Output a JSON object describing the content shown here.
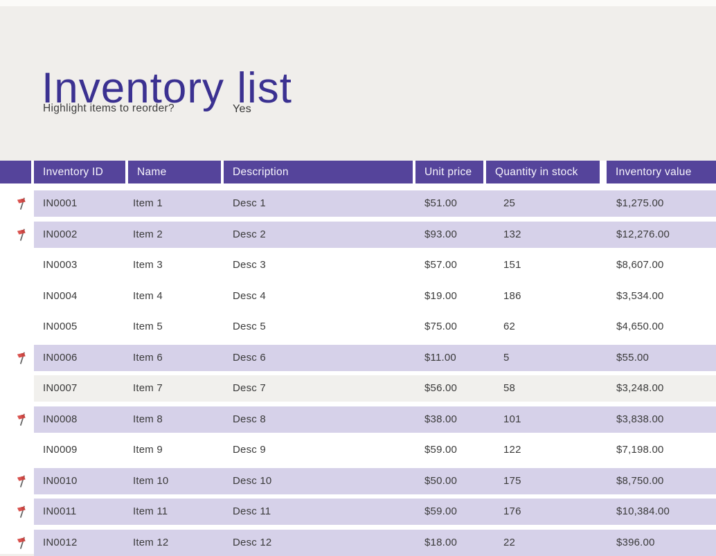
{
  "page": {
    "title": "Inventory list",
    "question_label": "Highlight items to reorder?",
    "question_value": "Yes"
  },
  "colors": {
    "header_bg": "#55449b",
    "highlight_row_bg": "#d6d1e9",
    "alt_row_bg": "#f1f0ed",
    "white_row_bg": "#ffffff",
    "title_text": "#3b3191",
    "page_bg": "#f0eeeb",
    "header_text": "#f7f5fc",
    "cell_text": "#3a3a3a",
    "flag_red": "#d9534f"
  },
  "table": {
    "columns": [
      {
        "key": "inventory_id",
        "label": "Inventory ID"
      },
      {
        "key": "name",
        "label": "Name"
      },
      {
        "key": "description",
        "label": "Description"
      },
      {
        "key": "unit_price",
        "label": "Unit price"
      },
      {
        "key": "quantity_in_stock",
        "label": "Quantity in stock"
      },
      {
        "key": "inventory_value",
        "label": "Inventory value"
      }
    ],
    "rows": [
      {
        "flag": true,
        "shade": "highlight",
        "inventory_id": "IN0001",
        "name": "Item 1",
        "description": "Desc 1",
        "unit_price": "$51.00",
        "quantity_in_stock": "25",
        "inventory_value": "$1,275.00"
      },
      {
        "flag": true,
        "shade": "highlight",
        "inventory_id": "IN0002",
        "name": "Item 2",
        "description": "Desc 2",
        "unit_price": "$93.00",
        "quantity_in_stock": "132",
        "inventory_value": "$12,276.00"
      },
      {
        "flag": false,
        "shade": "white",
        "inventory_id": "IN0003",
        "name": "Item 3",
        "description": "Desc 3",
        "unit_price": "$57.00",
        "quantity_in_stock": "151",
        "inventory_value": "$8,607.00"
      },
      {
        "flag": false,
        "shade": "white",
        "inventory_id": "IN0004",
        "name": "Item 4",
        "description": "Desc 4",
        "unit_price": "$19.00",
        "quantity_in_stock": "186",
        "inventory_value": "$3,534.00"
      },
      {
        "flag": false,
        "shade": "white",
        "inventory_id": "IN0005",
        "name": "Item 5",
        "description": "Desc 5",
        "unit_price": "$75.00",
        "quantity_in_stock": "62",
        "inventory_value": "$4,650.00"
      },
      {
        "flag": true,
        "shade": "highlight",
        "inventory_id": "IN0006",
        "name": "Item 6",
        "description": "Desc 6",
        "unit_price": "$11.00",
        "quantity_in_stock": "5",
        "inventory_value": "$55.00"
      },
      {
        "flag": false,
        "shade": "alt",
        "inventory_id": "IN0007",
        "name": "Item 7",
        "description": "Desc 7",
        "unit_price": "$56.00",
        "quantity_in_stock": "58",
        "inventory_value": "$3,248.00"
      },
      {
        "flag": true,
        "shade": "highlight",
        "inventory_id": "IN0008",
        "name": "Item 8",
        "description": "Desc 8",
        "unit_price": "$38.00",
        "quantity_in_stock": "101",
        "inventory_value": "$3,838.00"
      },
      {
        "flag": false,
        "shade": "white",
        "inventory_id": "IN0009",
        "name": "Item 9",
        "description": "Desc 9",
        "unit_price": "$59.00",
        "quantity_in_stock": "122",
        "inventory_value": "$7,198.00"
      },
      {
        "flag": true,
        "shade": "highlight",
        "inventory_id": "IN0010",
        "name": "Item 10",
        "description": "Desc 10",
        "unit_price": "$50.00",
        "quantity_in_stock": "175",
        "inventory_value": "$8,750.00"
      },
      {
        "flag": true,
        "shade": "highlight",
        "inventory_id": "IN0011",
        "name": "Item 11",
        "description": "Desc 11",
        "unit_price": "$59.00",
        "quantity_in_stock": "176",
        "inventory_value": "$10,384.00"
      },
      {
        "flag": true,
        "shade": "highlight",
        "inventory_id": "IN0012",
        "name": "Item 12",
        "description": "Desc 12",
        "unit_price": "$18.00",
        "quantity_in_stock": "22",
        "inventory_value": "$396.00"
      }
    ]
  }
}
